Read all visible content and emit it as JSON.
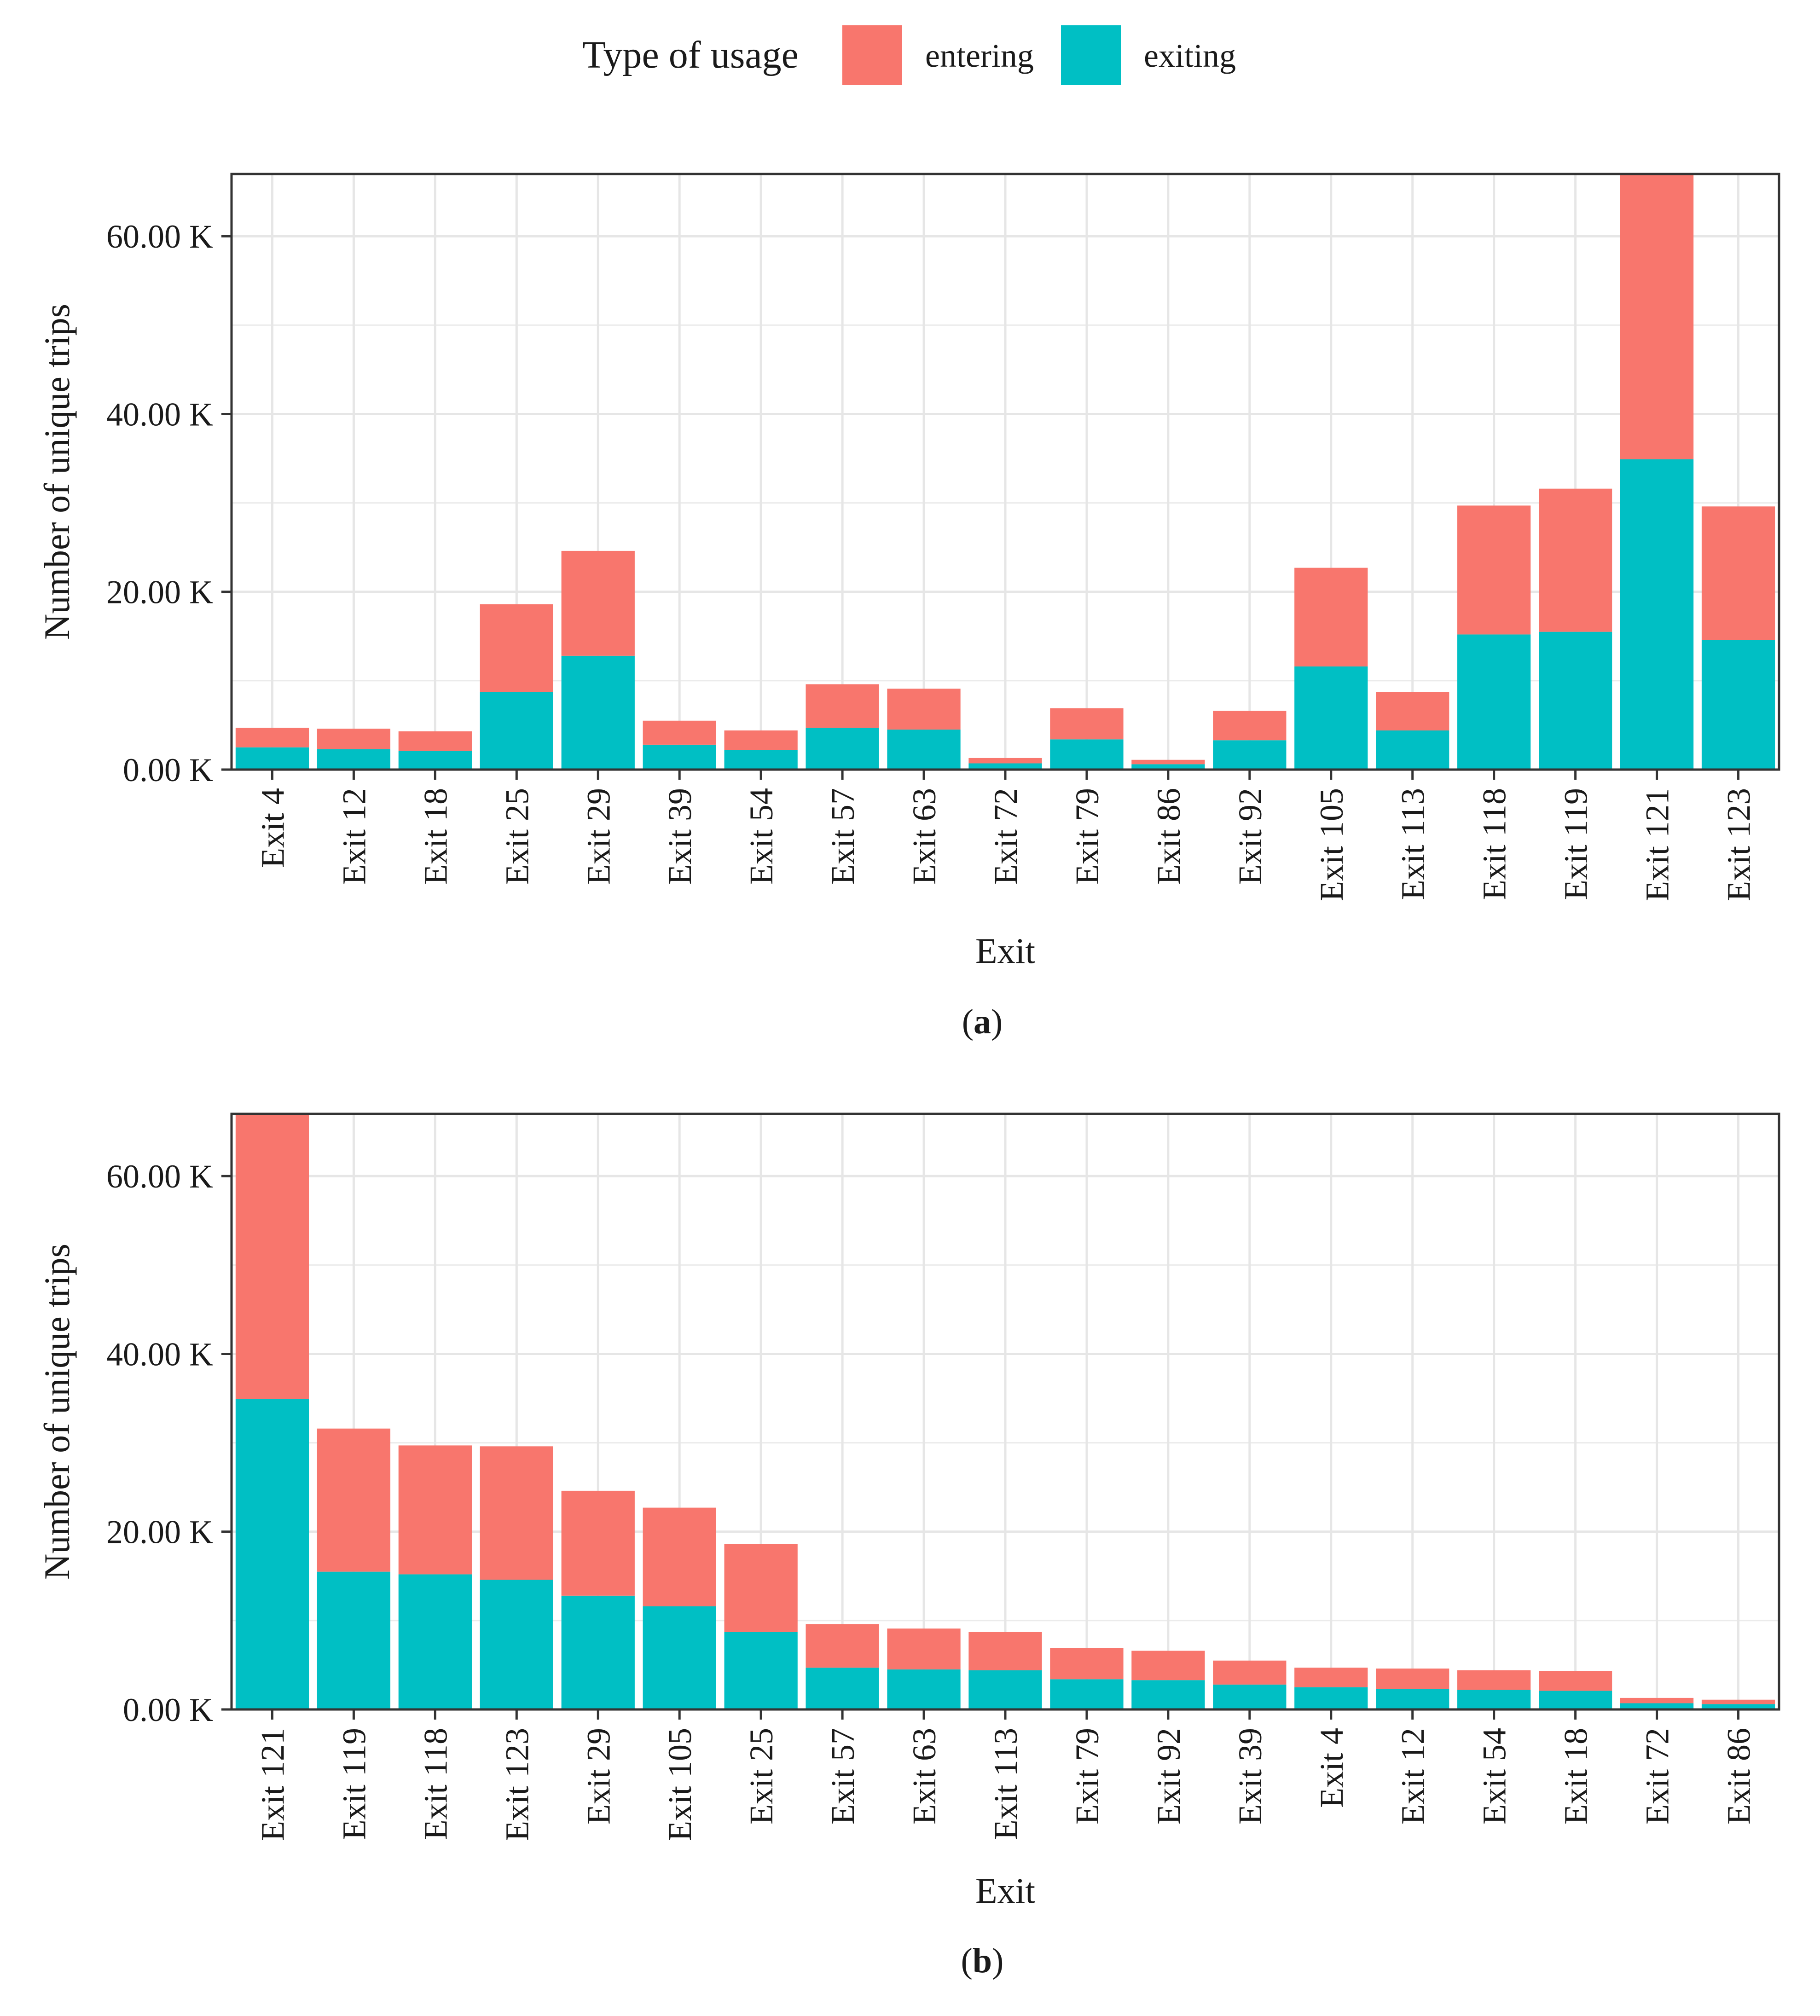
{
  "legend": {
    "title": "Type of usage",
    "entries": [
      {
        "key": "entering",
        "label": "entering",
        "color": "#F8766D"
      },
      {
        "key": "exiting",
        "label": "exiting",
        "color": "#00BFC4"
      }
    ]
  },
  "chart_data": [
    {
      "type": "bar",
      "stacked": true,
      "panel_label": "a",
      "xlabel": "Exit",
      "ylabel": "Number of unique trips",
      "ylim": [
        0,
        67000
      ],
      "y_ticks": [
        {
          "value": 0,
          "label": "0.00 K"
        },
        {
          "value": 20000,
          "label": "20.00 K"
        },
        {
          "value": 40000,
          "label": "40.00 K"
        },
        {
          "value": 60000,
          "label": "60.00 K"
        }
      ],
      "grid": true,
      "categories": [
        "Exit 4",
        "Exit 12",
        "Exit 18",
        "Exit 25",
        "Exit 29",
        "Exit 39",
        "Exit 54",
        "Exit 57",
        "Exit 63",
        "Exit 72",
        "Exit 79",
        "Exit 86",
        "Exit 92",
        "Exit 105",
        "Exit 113",
        "Exit 118",
        "Exit 119",
        "Exit 121",
        "Exit 123"
      ],
      "series": [
        {
          "name": "exiting",
          "values": [
            2500,
            2300,
            2100,
            8700,
            12800,
            2800,
            2200,
            4700,
            4500,
            700,
            3400,
            600,
            3300,
            11600,
            4400,
            15200,
            15500,
            34900,
            14600
          ]
        },
        {
          "name": "entering",
          "values": [
            2200,
            2300,
            2200,
            9900,
            11800,
            2700,
            2200,
            4900,
            4600,
            600,
            3500,
            500,
            3300,
            11100,
            4300,
            14500,
            16100,
            32100,
            15000
          ]
        }
      ]
    },
    {
      "type": "bar",
      "stacked": true,
      "panel_label": "b",
      "xlabel": "Exit",
      "ylabel": "Number of unique trips",
      "ylim": [
        0,
        67000
      ],
      "y_ticks": [
        {
          "value": 0,
          "label": "0.00 K"
        },
        {
          "value": 20000,
          "label": "20.00 K"
        },
        {
          "value": 40000,
          "label": "40.00 K"
        },
        {
          "value": 60000,
          "label": "60.00 K"
        }
      ],
      "grid": true,
      "categories": [
        "Exit 121",
        "Exit 119",
        "Exit 118",
        "Exit 123",
        "Exit 29",
        "Exit 105",
        "Exit 25",
        "Exit 57",
        "Exit 63",
        "Exit 113",
        "Exit 79",
        "Exit 92",
        "Exit 39",
        "Exit 4",
        "Exit 12",
        "Exit 54",
        "Exit 18",
        "Exit 72",
        "Exit 86"
      ],
      "series": [
        {
          "name": "exiting",
          "values": [
            34900,
            15500,
            15200,
            14600,
            12800,
            11600,
            8700,
            4700,
            4500,
            4400,
            3400,
            3300,
            2800,
            2500,
            2300,
            2200,
            2100,
            700,
            600
          ]
        },
        {
          "name": "entering",
          "values": [
            32100,
            16100,
            14500,
            15000,
            11800,
            11100,
            9900,
            4900,
            4600,
            4300,
            3500,
            3300,
            2700,
            2200,
            2300,
            2200,
            2200,
            600,
            500
          ]
        }
      ]
    }
  ]
}
